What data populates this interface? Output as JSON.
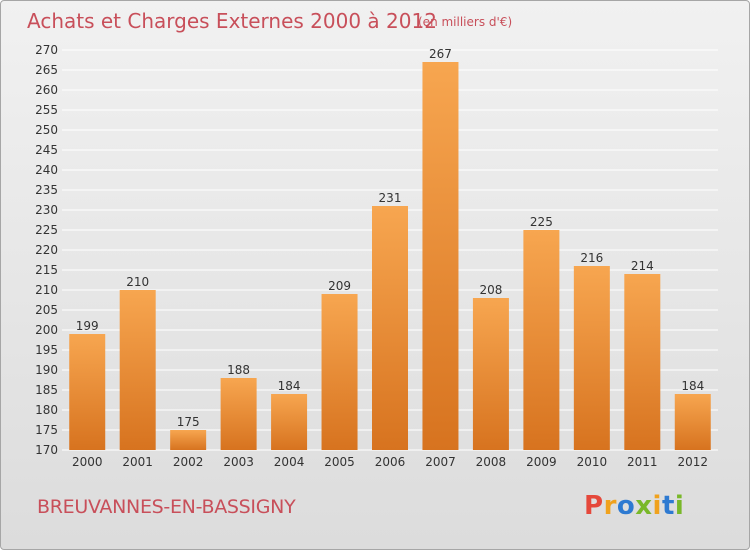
{
  "header": {
    "title": "Achats et Charges Externes 2000 à 2012",
    "unit": "(en milliers d'€)"
  },
  "footer": {
    "town": "BREUVANNES-EN-BASSIGNY",
    "logo_letters": [
      "P",
      "r",
      "o",
      "x",
      "i",
      "t",
      "i"
    ],
    "logo_colors": [
      "#e5483b",
      "#f0a21d",
      "#2e7ad1",
      "#79b829",
      "#f0a21d",
      "#2e7ad1",
      "#79b829"
    ]
  },
  "chart_data": {
    "type": "bar",
    "title": "Achats et Charges Externes 2000 à 2012",
    "subtitle": "(en milliers d'€)",
    "xlabel": "",
    "ylabel": "",
    "categories": [
      "2000",
      "2001",
      "2002",
      "2003",
      "2004",
      "2005",
      "2006",
      "2007",
      "2008",
      "2009",
      "2010",
      "2011",
      "2012"
    ],
    "values": [
      199,
      210,
      175,
      188,
      184,
      209,
      231,
      267,
      208,
      225,
      216,
      214,
      184
    ],
    "ylim": [
      170,
      270
    ],
    "ytick_step": 5,
    "grid": true,
    "colors": {
      "bar_light": "#f7a650",
      "bar_dark": "#d7731f",
      "grid": "#ffffff"
    }
  }
}
